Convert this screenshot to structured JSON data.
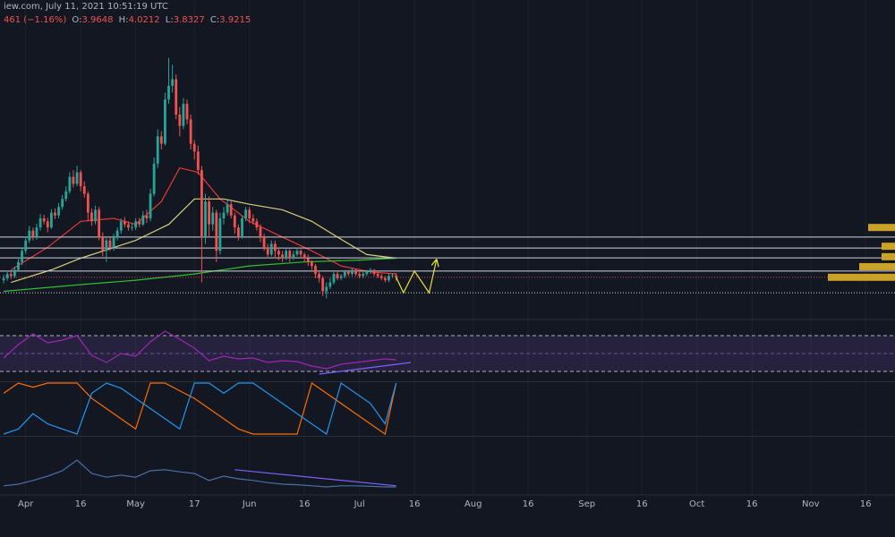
{
  "header": {
    "source": "iew.com, July 11, 2021 10:51:19 UTC",
    "change": "461 (−1.16%)",
    "ohlc": [
      {
        "label": "O:",
        "value": "3.9648"
      },
      {
        "label": "H:",
        "value": "4.0212"
      },
      {
        "label": "L:",
        "value": "3.8327"
      },
      {
        "label": "C:",
        "value": "3.9215"
      }
    ]
  },
  "chart_data": [
    {
      "type": "candlestick",
      "x": [
        "Mar 26",
        "Mar 27",
        "Mar 28",
        "Mar 29",
        "Mar 30",
        "Mar 31",
        "Apr 1",
        "Apr 2",
        "Apr 3",
        "Apr 4",
        "Apr 5",
        "Apr 6",
        "Apr 7",
        "Apr 8",
        "Apr 9",
        "Apr 10",
        "Apr 11",
        "Apr 12",
        "Apr 13",
        "Apr 14",
        "Apr 15",
        "Apr 16",
        "Apr 17",
        "Apr 18",
        "Apr 19",
        "Apr 20",
        "Apr 21",
        "Apr 22",
        "Apr 23",
        "Apr 24",
        "Apr 25",
        "Apr 26",
        "Apr 27",
        "Apr 28",
        "Apr 29",
        "Apr 30",
        "May 1",
        "May 2",
        "May 3",
        "May 4",
        "May 5",
        "May 6",
        "May 7",
        "May 8",
        "May 9",
        "May 10",
        "May 11",
        "May 12",
        "May 13",
        "May 14",
        "May 15",
        "May 16",
        "May 17",
        "May 18",
        "May 19",
        "May 20",
        "May 21",
        "May 22",
        "May 23",
        "May 24",
        "May 25",
        "May 26",
        "May 27",
        "May 28",
        "May 29",
        "May 30",
        "May 31",
        "Jun 1",
        "Jun 2",
        "Jun 3",
        "Jun 4",
        "Jun 5",
        "Jun 6",
        "Jun 7",
        "Jun 8",
        "Jun 9",
        "Jun 10",
        "Jun 11",
        "Jun 12",
        "Jun 13",
        "Jun 14",
        "Jun 15",
        "Jun 16",
        "Jun 17",
        "Jun 18",
        "Jun 19",
        "Jun 20",
        "Jun 21",
        "Jun 22",
        "Jun 23",
        "Jun 24",
        "Jun 25",
        "Jun 26",
        "Jun 27",
        "Jun 28",
        "Jun 29",
        "Jun 30",
        "Jul 1",
        "Jul 2",
        "Jul 3",
        "Jul 4",
        "Jul 5",
        "Jul 6",
        "Jul 7",
        "Jul 8",
        "Jul 9",
        "Jul 10",
        "Jul 11"
      ],
      "open": [
        3.85,
        3.9,
        4,
        3.95,
        4.1,
        4.3,
        4.6,
        4.9,
        5.2,
        5,
        5.3,
        5.6,
        5.5,
        5.3,
        5.8,
        5.7,
        6,
        6.3,
        6.6,
        7.2,
        6.9,
        7.4,
        6.8,
        6.5,
        5.8,
        5.5,
        5.9,
        5,
        4.6,
        4.9,
        4.7,
        5,
        5.2,
        5.5,
        5.4,
        5.3,
        5.3,
        5.5,
        5.4,
        5.7,
        5.6,
        6.5,
        7.8,
        9.2,
        8.8,
        11.5,
        12.5,
        13,
        10.5,
        9.8,
        11.2,
        10.2,
        8.8,
        8.4,
        7.5,
        5,
        6.2,
        5.4,
        5.8,
        4.6,
        5.6,
        5.8,
        6.1,
        5.7,
        5.3,
        5,
        5.6,
        5.9,
        5.6,
        5.5,
        5.3,
        5,
        4.7,
        4.5,
        4.8,
        4.6,
        4.5,
        4.4,
        4.6,
        4.4,
        4.5,
        4.6,
        4.5,
        4.4,
        4.3,
        4.2,
        4,
        3.9,
        3.6,
        3.7,
        3.8,
        4,
        3.9,
        3.95,
        4.05,
        4,
        4.1,
        4,
        3.95,
        4,
        4.05,
        4.1,
        4,
        3.95,
        3.9,
        3.85,
        3.95,
        3.9648
      ],
      "high": [
        3.98,
        4.08,
        4.06,
        4.18,
        4.38,
        4.7,
        5.02,
        5.35,
        5.3,
        5.42,
        5.75,
        5.72,
        5.62,
        5.92,
        5.95,
        6.15,
        6.45,
        6.8,
        7.4,
        7.5,
        7.7,
        7.5,
        7,
        6.6,
        5.95,
        6.05,
        6,
        5.15,
        5,
        5,
        5.1,
        5.3,
        5.6,
        5.65,
        5.5,
        5.45,
        5.6,
        5.62,
        5.85,
        5.9,
        6.7,
        8.1,
        9.6,
        9.5,
        12,
        14.8,
        14.2,
        13.4,
        11,
        11.6,
        11.5,
        10.5,
        9,
        8.7,
        7.7,
        6.5,
        6.4,
        6,
        5.9,
        5.8,
        6,
        6.3,
        6.2,
        5.8,
        5.4,
        5.7,
        6,
        6,
        5.75,
        5.6,
        5.4,
        5.1,
        4.8,
        4.9,
        4.9,
        4.7,
        4.6,
        4.7,
        4.65,
        4.6,
        4.7,
        4.65,
        4.55,
        4.5,
        4.35,
        4.25,
        4.05,
        3.95,
        3.8,
        3.9,
        4.05,
        4.05,
        4,
        4.1,
        4.1,
        4.15,
        4.12,
        4.05,
        4.05,
        4.1,
        4.15,
        4.12,
        4.05,
        4,
        3.95,
        4,
        4.02,
        4.0212
      ],
      "low": [
        3.78,
        3.84,
        3.88,
        3.9,
        4.05,
        4.22,
        4.52,
        4.82,
        4.9,
        4.92,
        5.2,
        5.4,
        5.15,
        5.25,
        5.58,
        5.6,
        5.9,
        6.2,
        6.5,
        6.75,
        6.8,
        6.6,
        6.35,
        5.5,
        5.35,
        5.4,
        4.9,
        4.45,
        4.3,
        4.6,
        4.6,
        4.9,
        5.1,
        5.3,
        5.2,
        5.2,
        5.22,
        5.3,
        5.35,
        5.45,
        5.5,
        6.4,
        7.6,
        8.5,
        8.7,
        11.2,
        12,
        10.2,
        9.2,
        9.6,
        9.9,
        8.5,
        8,
        7.3,
        3.8,
        4.8,
        5,
        5.2,
        4.3,
        4.5,
        5.4,
        5.7,
        5.6,
        5.1,
        4.9,
        4.95,
        5.5,
        5.45,
        5.4,
        5.2,
        4.85,
        4.6,
        4.4,
        4.45,
        4.4,
        4.35,
        4.3,
        4.35,
        4.3,
        4.35,
        4.45,
        4.4,
        4.3,
        4.2,
        4.1,
        3.9,
        3.8,
        3.5,
        3.45,
        3.65,
        3.75,
        3.85,
        3.85,
        3.9,
        3.95,
        3.95,
        3.95,
        3.9,
        3.9,
        3.95,
        4,
        3.95,
        3.9,
        3.85,
        3.8,
        3.8,
        3.9,
        3.8327
      ],
      "close": [
        3.9,
        4,
        3.95,
        4.1,
        4.3,
        4.6,
        4.9,
        5.2,
        5,
        5.3,
        5.6,
        5.5,
        5.3,
        5.8,
        5.7,
        6,
        6.3,
        6.6,
        7.2,
        6.9,
        7.4,
        6.8,
        6.5,
        5.8,
        5.5,
        5.9,
        5,
        4.6,
        4.9,
        4.7,
        5,
        5.2,
        5.5,
        5.4,
        5.3,
        5.3,
        5.5,
        5.4,
        5.7,
        5.6,
        6.5,
        7.8,
        9.2,
        8.8,
        11.5,
        12.5,
        13,
        10.5,
        9.8,
        11.2,
        10.2,
        8.8,
        8.4,
        7.5,
        5,
        6.2,
        5.4,
        5.8,
        4.6,
        5.6,
        5.8,
        6.1,
        5.7,
        5.3,
        5,
        5.6,
        5.9,
        5.6,
        5.5,
        5.3,
        5,
        4.7,
        4.5,
        4.8,
        4.6,
        4.5,
        4.4,
        4.6,
        4.4,
        4.5,
        4.6,
        4.5,
        4.4,
        4.3,
        4.2,
        4,
        3.9,
        3.6,
        3.7,
        3.8,
        4,
        3.9,
        3.95,
        4.05,
        4,
        4.1,
        4,
        3.95,
        4,
        4.05,
        4.1,
        4,
        3.95,
        3.9,
        3.85,
        3.95,
        3.9648,
        3.9215
      ],
      "up_color": "#26a69a",
      "down_color": "#ef5350",
      "ylim": [
        3.42,
        19.9
      ],
      "log_scale": true,
      "xlim": [
        "Mar 25",
        "Nov 24"
      ],
      "xticks": [
        {
          "value": "Apr 1",
          "label": "Apr"
        },
        {
          "value": "Apr 16",
          "label": "16"
        },
        {
          "value": "May 1",
          "label": "May"
        },
        {
          "value": "May 17",
          "label": "17"
        },
        {
          "value": "Jun 1",
          "label": "Jun"
        },
        {
          "value": "Jun 16",
          "label": "16"
        },
        {
          "value": "Jul 1",
          "label": "Jul"
        },
        {
          "value": "Jul 16",
          "label": "16"
        },
        {
          "value": "Aug 1",
          "label": "Aug"
        },
        {
          "value": "Aug 16",
          "label": "16"
        },
        {
          "value": "Sep 1",
          "label": "Sep"
        },
        {
          "value": "Sep 16",
          "label": "16"
        },
        {
          "value": "Oct 1",
          "label": "Oct"
        },
        {
          "value": "Oct 16",
          "label": "16"
        },
        {
          "value": "Nov 1",
          "label": "Nov"
        },
        {
          "value": "Nov 16",
          "label": "16"
        }
      ],
      "grid": true,
      "lines": [
        {
          "color": "#e53935",
          "x": [
            "Mar 28",
            "Apr 7",
            "Apr 16",
            "Apr 25",
            "May 1",
            "May 8",
            "May 13",
            "May 18",
            "May 24",
            "Jun 1",
            "Jun 10",
            "Jun 18",
            "Jun 26",
            "Jul 4",
            "Jul 11"
          ],
          "values": [
            4.1,
            4.7,
            5.5,
            5.6,
            5.4,
            6.2,
            7.6,
            7.4,
            6.3,
            5.5,
            5,
            4.6,
            4.2,
            4.05,
            4
          ]
        },
        {
          "color": "#d6cf7a",
          "x": [
            "Mar 28",
            "Apr 8",
            "Apr 16",
            "May 1",
            "May 10",
            "May 17",
            "May 25",
            "Jun 1",
            "Jun 10",
            "Jun 18",
            "Jun 25",
            "Jul 3",
            "Jul 11"
          ],
          "values": [
            3.8,
            4.1,
            4.4,
            4.9,
            5.4,
            6.3,
            6.3,
            6.1,
            5.9,
            5.5,
            5,
            4.5,
            4.4
          ]
        },
        {
          "color": "#2fbf2f",
          "x": [
            "Mar 26",
            "Apr 16",
            "May 1",
            "May 17",
            "Jun 1",
            "Jun 16",
            "Jul 1",
            "Jul 11"
          ],
          "values": [
            3.6,
            3.75,
            3.85,
            4,
            4.2,
            4.3,
            4.35,
            4.4
          ]
        }
      ],
      "levels": [
        5,
        4.68,
        4.41,
        4.07
      ],
      "level_color": "#d1d4dc",
      "support": 3.57,
      "volume_profile": {
        "prices": [
          5.3,
          4.73,
          4.44,
          4.18,
          3.92
        ],
        "values": [
          30,
          15,
          15,
          40,
          75
        ],
        "color": "#c9a227"
      },
      "projection": {
        "x": [
          "Jul 11",
          "Jul 13",
          "Jul 16",
          "Jul 20",
          "Jul 22"
        ],
        "values": [
          3.92,
          3.57,
          4.07,
          3.57,
          4.36
        ],
        "color": "#e8e337"
      }
    },
    {
      "type": "line",
      "x": [
        "Mar 26",
        "Mar 30",
        "Apr 3",
        "Apr 7",
        "Apr 11",
        "Apr 15",
        "Apr 19",
        "Apr 23",
        "Apr 27",
        "May 1",
        "May 5",
        "May 9",
        "May 13",
        "May 17",
        "May 21",
        "May 25",
        "May 29",
        "Jun 2",
        "Jun 6",
        "Jun 10",
        "Jun 14",
        "Jun 18",
        "Jun 22",
        "Jun 26",
        "Jun 30",
        "Jul 4",
        "Jul 8",
        "Jul 11"
      ],
      "series": [
        {
          "color": "#9c27b0",
          "values": [
            45,
            60,
            72,
            62,
            65,
            70,
            48,
            40,
            50,
            47,
            63,
            75,
            66,
            56,
            42,
            47,
            44,
            45,
            40,
            42,
            41,
            36,
            33,
            38,
            40,
            42,
            44,
            43
          ]
        }
      ],
      "ylim": [
        20,
        80
      ],
      "bands": [
        70,
        50,
        30
      ],
      "band_color": "#7e57c2",
      "trend": {
        "x": [
          "Jun 20",
          "Jul 15"
        ],
        "values": [
          27,
          40
        ],
        "color": "#7b61ff"
      }
    },
    {
      "type": "line",
      "x": [
        "Mar 26",
        "Mar 30",
        "Apr 3",
        "Apr 7",
        "Apr 11",
        "Apr 15",
        "Apr 19",
        "Apr 23",
        "Apr 27",
        "May 1",
        "May 5",
        "May 9",
        "May 13",
        "May 17",
        "May 21",
        "May 25",
        "May 29",
        "Jun 2",
        "Jun 6",
        "Jun 10",
        "Jun 14",
        "Jun 18",
        "Jun 22",
        "Jun 26",
        "Jun 30",
        "Jul 4",
        "Jul 8",
        "Jul 11"
      ],
      "series": [
        {
          "color": "#ff6d00",
          "values": [
            80,
            100,
            92,
            100,
            100,
            100,
            70,
            50,
            30,
            10,
            100,
            100,
            85,
            70,
            50,
            30,
            10,
            0,
            0,
            0,
            0,
            100,
            80,
            60,
            40,
            20,
            0,
            100
          ]
        },
        {
          "color": "#2196f3",
          "values": [
            0,
            10,
            40,
            20,
            10,
            0,
            80,
            100,
            90,
            70,
            50,
            30,
            10,
            100,
            100,
            80,
            100,
            100,
            80,
            60,
            40,
            20,
            0,
            100,
            80,
            60,
            20,
            100
          ]
        }
      ],
      "ylim": [
        0,
        100
      ]
    },
    {
      "type": "line",
      "x": [
        "Mar 26",
        "Mar 30",
        "Apr 3",
        "Apr 7",
        "Apr 11",
        "Apr 15",
        "Apr 19",
        "Apr 23",
        "Apr 27",
        "May 1",
        "May 5",
        "May 9",
        "May 13",
        "May 17",
        "May 21",
        "May 25",
        "May 29",
        "Jun 2",
        "Jun 6",
        "Jun 10",
        "Jun 14",
        "Jun 18",
        "Jun 22",
        "Jun 26",
        "Jun 30",
        "Jul 4",
        "Jul 8",
        "Jul 11"
      ],
      "series": [
        {
          "color": "#4a6fa5",
          "values": [
            12,
            15,
            22,
            30,
            40,
            60,
            35,
            28,
            32,
            28,
            40,
            42,
            38,
            35,
            22,
            30,
            25,
            22,
            18,
            15,
            14,
            12,
            10,
            12,
            12,
            11,
            10,
            10
          ]
        }
      ],
      "ylim": [
        0,
        100
      ],
      "trend": {
        "x": [
          "May 28",
          "Jul 11"
        ],
        "values": [
          42,
          12
        ],
        "color": "#7b61ff"
      }
    }
  ]
}
